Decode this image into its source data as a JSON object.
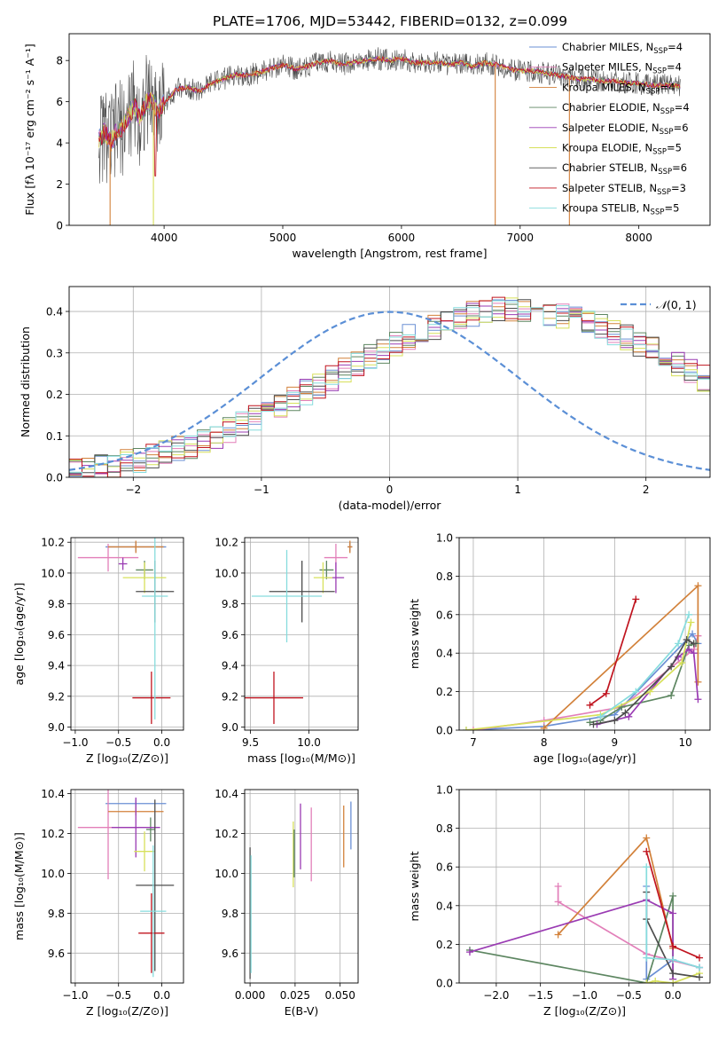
{
  "figure": {
    "title": "PLATE=1706, MJD=53442, FIBERID=0132, z=0.099"
  },
  "colors": {
    "chabrier_miles": "#6a8fd4",
    "salpeter_miles": "#e27fb9",
    "kroupa_miles": "#d2813a",
    "chabrier_elodie": "#5d8661",
    "salpeter_elodie": "#9a3bb3",
    "kroupa_elodie": "#d7e05b",
    "chabrier_stelib": "#4d4d4d",
    "salpeter_stelib": "#c0141f",
    "kroupa_stelib": "#86dcdd",
    "normal_curve": "#5b8fd6",
    "grid": "#b0b0b0"
  },
  "chart_data": [
    {
      "id": "spectrum",
      "type": "line",
      "xlabel": "wavelength [Angstrom, rest frame]",
      "ylabel": "Flux [fλ 10⁻¹⁷ erg cm⁻² s⁻¹ A⁻¹]",
      "xlim": [
        3200,
        8600
      ],
      "ylim": [
        0,
        9.3
      ],
      "xticks": [
        "4000",
        "5000",
        "6000",
        "7000",
        "8000"
      ],
      "yticks": [
        "0",
        "2",
        "4",
        "6",
        "8"
      ],
      "legend_position": "right",
      "data_wavelength": [
        3450,
        3500,
        3550,
        3600,
        3650,
        3700,
        3750,
        3800,
        3850,
        3900,
        3950,
        4000,
        4100,
        4200,
        4300,
        4400,
        4500,
        4600,
        4700,
        4800,
        4900,
        5000,
        5100,
        5200,
        5300,
        5400,
        5500,
        5600,
        5700,
        5800,
        5900,
        6000,
        6100,
        6200,
        6300,
        6400,
        6500,
        6600,
        6700,
        6800,
        6900,
        7000,
        7100,
        7200,
        7300,
        7400,
        7500,
        7600,
        7700,
        7800,
        7900,
        8000,
        8100,
        8200,
        8300,
        8350
      ],
      "data_flux": [
        4.2,
        4.5,
        4.0,
        4.6,
        4.8,
        5.3,
        5.8,
        5.2,
        6.0,
        6.0,
        5.6,
        5.9,
        6.6,
        6.7,
        6.5,
        6.9,
        7.1,
        7.3,
        7.3,
        7.4,
        7.6,
        7.8,
        7.6,
        7.7,
        7.9,
        8.0,
        7.8,
        7.9,
        8.0,
        8.1,
        8.0,
        8.1,
        7.9,
        7.9,
        7.9,
        7.8,
        7.9,
        7.7,
        7.9,
        7.8,
        7.6,
        7.5,
        7.5,
        7.4,
        7.3,
        7.2,
        7.1,
        7.1,
        7.0,
        7.0,
        6.9,
        6.9,
        6.8,
        6.8,
        6.8,
        6.7
      ],
      "series": [
        {
          "name": "Chabrier MILES, N$_{SSP}$=4",
          "label": "Chabrier MILES, N",
          "sub": "SSP",
          "suffix": "=4",
          "color": "#6a8fd4"
        },
        {
          "name": "Salpeter MILES, N$_{SSP}$=4",
          "label": "Salpeter MILES, N",
          "sub": "SSP",
          "suffix": "=4",
          "color": "#e27fb9"
        },
        {
          "name": "Kroupa MILES, N$_{SSP}$=4",
          "label": "Kroupa MILES, N",
          "sub": "SSP",
          "suffix": "=4",
          "color": "#d2813a"
        },
        {
          "name": "Chabrier ELODIE, N$_{SSP}$=4",
          "label": "Chabrier ELODIE, N",
          "sub": "SSP",
          "suffix": "=4",
          "color": "#5d8661"
        },
        {
          "name": "Salpeter ELODIE, N$_{SSP}$=6",
          "label": "Salpeter ELODIE, N",
          "sub": "SSP",
          "suffix": "=6",
          "color": "#9a3bb3"
        },
        {
          "name": "Kroupa ELODIE, N$_{SSP}$=5",
          "label": "Kroupa ELODIE, N",
          "sub": "SSP",
          "suffix": "=5",
          "color": "#d7e05b"
        },
        {
          "name": "Chabrier STELIB, N$_{SSP}$=6",
          "label": "Chabrier STELIB, N",
          "sub": "SSP",
          "suffix": "=6",
          "color": "#4d4d4d"
        },
        {
          "name": "Salpeter STELIB, N$_{SSP}$=3",
          "label": "Salpeter STELIB, N",
          "sub": "SSP",
          "suffix": "=3",
          "color": "#c0141f"
        },
        {
          "name": "Kroupa STELIB, N$_{SSP}$=5",
          "label": "Kroupa STELIB, N",
          "sub": "SSP",
          "suffix": "=5",
          "color": "#86dcdd"
        }
      ]
    },
    {
      "id": "residuals",
      "type": "line",
      "xlabel": "(data-model)/error",
      "ylabel": "Normed distribution",
      "xlim": [
        -2.5,
        2.5
      ],
      "ylim": [
        0,
        0.46
      ],
      "xticks": [
        "−2",
        "−1",
        "0",
        "1",
        "2"
      ],
      "xtick_values": [
        -2,
        -1,
        0,
        1,
        2
      ],
      "yticks": [
        "0.0",
        "0.1",
        "0.2",
        "0.3",
        "0.4"
      ],
      "ytick_values": [
        0,
        0.1,
        0.2,
        0.3,
        0.4
      ],
      "bin_width": 0.1,
      "bin_start": -2.5,
      "envelope": [
        0.02,
        0.022,
        0.025,
        0.03,
        0.035,
        0.042,
        0.05,
        0.058,
        0.067,
        0.077,
        0.088,
        0.1,
        0.113,
        0.127,
        0.142,
        0.157,
        0.172,
        0.189,
        0.205,
        0.222,
        0.239,
        0.257,
        0.274,
        0.29,
        0.307,
        0.323,
        0.338,
        0.352,
        0.365,
        0.376,
        0.385,
        0.392,
        0.398,
        0.402,
        0.405,
        0.405,
        0.402,
        0.398,
        0.392,
        0.385,
        0.376,
        0.365,
        0.352,
        0.338,
        0.323,
        0.307,
        0.29,
        0.274,
        0.257,
        0.239,
        0.222
      ],
      "normal_label_script": "𝒩",
      "normal_label": "(0, 1)"
    },
    {
      "id": "age_vs_Z",
      "type": "scatter",
      "xlabel": "Z [log₁₀(Z/Z⊙)]",
      "ylabel": "age  [log₁₀(age/yr)]",
      "xlim": [
        -1.05,
        0.25
      ],
      "ylim": [
        8.98,
        10.23
      ],
      "xticks": [
        "−1.0",
        "−0.5",
        "0.0"
      ],
      "xtick_values": [
        -1.0,
        -0.5,
        0.0
      ],
      "yticks": [
        "9.0",
        "9.2",
        "9.4",
        "9.6",
        "9.8",
        "10.0",
        "10.2"
      ],
      "ytick_values": [
        9.0,
        9.2,
        9.4,
        9.6,
        9.8,
        10.0,
        10.2
      ],
      "points": [
        {
          "x": -0.3,
          "y": 10.17,
          "xerr": 0.35,
          "yerr": 0.03,
          "color": "#6a8fd4"
        },
        {
          "x": -0.62,
          "y": 10.1,
          "xerr": 0.35,
          "yerr": 0.09,
          "color": "#e27fb9"
        },
        {
          "x": -0.3,
          "y": 10.17,
          "xerr": 0.32,
          "yerr": 0.04,
          "color": "#d2813a"
        },
        {
          "x": -0.2,
          "y": 10.02,
          "xerr": 0.1,
          "yerr": 0.06,
          "color": "#5d8661"
        },
        {
          "x": -0.45,
          "y": 10.06,
          "xerr": 0.05,
          "yerr": 0.04,
          "color": "#9a3bb3"
        },
        {
          "x": -0.2,
          "y": 9.97,
          "xerr": 0.25,
          "yerr": 0.1,
          "color": "#d7e05b"
        },
        {
          "x": -0.08,
          "y": 9.88,
          "xerr": 0.22,
          "yerr": 0.2,
          "color": "#4d4d4d"
        },
        {
          "x": -0.12,
          "y": 9.19,
          "xerr": 0.22,
          "yerr": 0.17,
          "color": "#c0141f"
        },
        {
          "x": -0.08,
          "y": 9.85,
          "xerr": 0.15,
          "yerr": 0.8,
          "color": "#86dcdd"
        }
      ]
    },
    {
      "id": "age_vs_mass",
      "type": "scatter",
      "xlabel": "mass [log₁₀(M/M⊙)]",
      "ylabel": "",
      "xlim": [
        9.45,
        10.42
      ],
      "ylim": [
        8.98,
        10.23
      ],
      "xticks": [
        "9.5",
        "10.0"
      ],
      "xtick_values": [
        9.5,
        10.0
      ],
      "yticks": [
        "9.0",
        "9.2",
        "9.4",
        "9.6",
        "9.8",
        "10.0",
        "10.2"
      ],
      "ytick_values": [
        9.0,
        9.2,
        9.4,
        9.6,
        9.8,
        10.0,
        10.2
      ],
      "points": [
        {
          "x": 10.35,
          "y": 10.17,
          "xerr": 0.02,
          "yerr": 0.03,
          "color": "#6a8fd4"
        },
        {
          "x": 10.23,
          "y": 10.1,
          "xerr": 0.1,
          "yerr": 0.09,
          "color": "#e27fb9"
        },
        {
          "x": 10.35,
          "y": 10.17,
          "xerr": 0.02,
          "yerr": 0.04,
          "color": "#d2813a"
        },
        {
          "x": 10.15,
          "y": 10.02,
          "xerr": 0.06,
          "yerr": 0.06,
          "color": "#5d8661"
        },
        {
          "x": 10.23,
          "y": 9.97,
          "xerr": 0.07,
          "yerr": 0.1,
          "color": "#9a3bb3"
        },
        {
          "x": 10.12,
          "y": 9.97,
          "xerr": 0.08,
          "yerr": 0.1,
          "color": "#d7e05b"
        },
        {
          "x": 9.94,
          "y": 9.88,
          "xerr": 0.28,
          "yerr": 0.2,
          "color": "#4d4d4d"
        },
        {
          "x": 9.7,
          "y": 9.19,
          "xerr": 0.25,
          "yerr": 0.17,
          "color": "#c0141f"
        },
        {
          "x": 9.81,
          "y": 9.85,
          "xerr": 0.3,
          "yerr": 0.3,
          "color": "#86dcdd"
        }
      ]
    },
    {
      "id": "mass_weight_vs_age",
      "type": "line",
      "xlabel": "age  [log₁₀(age/yr)]",
      "ylabel": "mass weight",
      "xlim": [
        6.8,
        10.35
      ],
      "ylim": [
        0,
        1.0
      ],
      "xticks": [
        "7",
        "8",
        "9",
        "10"
      ],
      "xtick_values": [
        7,
        8,
        9,
        10
      ],
      "yticks": [
        "0.0",
        "0.2",
        "0.4",
        "0.6",
        "0.8",
        "1.0"
      ],
      "ytick_values": [
        0,
        0.2,
        0.4,
        0.6,
        0.8,
        1.0
      ],
      "series": [
        {
          "color": "#6a8fd4",
          "x": [
            6.9,
            8.0,
            9.0,
            10.1,
            10.18
          ],
          "y": [
            0.0,
            0.02,
            0.08,
            0.5,
            0.45
          ]
        },
        {
          "color": "#e27fb9",
          "x": [
            7.0,
            8.0,
            9.1,
            10.12,
            10.18
          ],
          "y": [
            0.0,
            0.05,
            0.12,
            0.42,
            0.49
          ]
        },
        {
          "color": "#d2813a",
          "x": [
            8.0,
            10.18,
            10.18
          ],
          "y": [
            0.01,
            0.75,
            0.25
          ]
        },
        {
          "color": "#5d8661",
          "x": [
            8.65,
            8.8,
            9.1,
            9.8,
            10.05,
            10.15
          ],
          "y": [
            0.04,
            0.05,
            0.12,
            0.18,
            0.44,
            0.45
          ]
        },
        {
          "color": "#9a3bb3",
          "x": [
            8.75,
            9.2,
            9.9,
            10.05,
            10.12,
            10.18
          ],
          "y": [
            0.03,
            0.07,
            0.38,
            0.42,
            0.4,
            0.16
          ]
        },
        {
          "color": "#d7e05b",
          "x": [
            6.9,
            8.8,
            9.5,
            9.95,
            10.08
          ],
          "y": [
            0.0,
            0.08,
            0.2,
            0.35,
            0.56
          ]
        },
        {
          "color": "#4d4d4d",
          "x": [
            8.7,
            9.0,
            9.15,
            9.8,
            10.02,
            10.12
          ],
          "y": [
            0.03,
            0.05,
            0.09,
            0.33,
            0.47,
            0.45
          ]
        },
        {
          "color": "#c0141f",
          "x": [
            8.65,
            8.88,
            9.3
          ],
          "y": [
            0.13,
            0.19,
            0.68
          ]
        },
        {
          "color": "#86dcdd",
          "x": [
            8.8,
            9.3,
            9.9,
            10.05
          ],
          "y": [
            0.07,
            0.2,
            0.45,
            0.6
          ]
        }
      ]
    },
    {
      "id": "mass_vs_Z",
      "type": "scatter",
      "xlabel": "Z [log₁₀(Z/Z⊙)]",
      "ylabel": "mass [log₁₀(M/M⊙)]",
      "xlim": [
        -1.05,
        0.25
      ],
      "ylim": [
        9.45,
        10.42
      ],
      "xticks": [
        "−1.0",
        "−0.5",
        "0.0"
      ],
      "xtick_values": [
        -1.0,
        -0.5,
        0.0
      ],
      "yticks": [
        "9.6",
        "9.8",
        "10.0",
        "10.2",
        "10.4"
      ],
      "ytick_values": [
        9.6,
        9.8,
        10.0,
        10.2,
        10.4
      ],
      "points": [
        {
          "x": -0.3,
          "y": 10.35,
          "xerr": 0.35,
          "yerr": 0.02,
          "color": "#6a8fd4"
        },
        {
          "x": -0.62,
          "y": 10.23,
          "xerr": 0.35,
          "yerr": 0.26,
          "color": "#e27fb9"
        },
        {
          "x": -0.3,
          "y": 10.31,
          "xerr": 0.32,
          "yerr": 0.02,
          "color": "#d2813a"
        },
        {
          "x": -0.13,
          "y": 10.22,
          "xerr": 0.05,
          "yerr": 0.06,
          "color": "#5d8661"
        },
        {
          "x": -0.3,
          "y": 10.23,
          "xerr": 0.28,
          "yerr": 0.15,
          "color": "#9a3bb3"
        },
        {
          "x": -0.2,
          "y": 10.11,
          "xerr": 0.12,
          "yerr": 0.1,
          "color": "#d7e05b"
        },
        {
          "x": -0.08,
          "y": 9.94,
          "xerr": 0.22,
          "yerr": 0.43,
          "color": "#4d4d4d"
        },
        {
          "x": -0.12,
          "y": 9.7,
          "xerr": 0.15,
          "yerr": 0.2,
          "color": "#c0141f"
        },
        {
          "x": -0.1,
          "y": 9.81,
          "xerr": 0.15,
          "yerr": 0.33,
          "color": "#86dcdd"
        }
      ]
    },
    {
      "id": "mass_vs_ebv",
      "type": "scatter",
      "xlabel": "E(B-V)",
      "ylabel": "",
      "xlim": [
        -0.003,
        0.06
      ],
      "ylim": [
        9.45,
        10.42
      ],
      "xticks": [
        "0.000",
        "0.025",
        "0.050"
      ],
      "xtick_values": [
        0.0,
        0.025,
        0.05
      ],
      "yticks": [
        "9.6",
        "9.8",
        "10.0",
        "10.2",
        "10.4"
      ],
      "ytick_values": [
        9.6,
        9.8,
        10.0,
        10.2,
        10.4
      ],
      "bars": [
        {
          "x": 0.0,
          "y0": 9.47,
          "y1": 10.13,
          "color": "#4d4d4d"
        },
        {
          "x": 0.0005,
          "y0": 9.5,
          "y1": 10.09,
          "color": "#86dcdd"
        },
        {
          "x": 0.024,
          "y0": 9.93,
          "y1": 10.26,
          "color": "#d7e05b"
        },
        {
          "x": 0.0245,
          "y0": 9.98,
          "y1": 10.22,
          "color": "#5d8661"
        },
        {
          "x": 0.028,
          "y0": 10.02,
          "y1": 10.35,
          "color": "#9a3bb3"
        },
        {
          "x": 0.034,
          "y0": 9.96,
          "y1": 10.33,
          "color": "#e27fb9"
        },
        {
          "x": 0.052,
          "y0": 10.03,
          "y1": 10.34,
          "color": "#d2813a"
        },
        {
          "x": 0.056,
          "y0": 10.12,
          "y1": 10.36,
          "color": "#6a8fd4"
        }
      ]
    },
    {
      "id": "mass_weight_vs_Z",
      "type": "line",
      "xlabel": "Z [log₁₀(Z/Z⊙)]",
      "ylabel": "mass weight",
      "xlim": [
        -2.42,
        0.42
      ],
      "ylim": [
        0,
        1.0
      ],
      "xticks": [
        "−2.0",
        "−1.5",
        "−1.0",
        "−0.5",
        "0.0"
      ],
      "xtick_values": [
        -2.0,
        -1.5,
        -1.0,
        -0.5,
        0.0
      ],
      "yticks": [
        "0.0",
        "0.2",
        "0.4",
        "0.6",
        "0.8",
        "1.0"
      ],
      "ytick_values": [
        0,
        0.2,
        0.4,
        0.6,
        0.8,
        1.0
      ],
      "series": [
        {
          "color": "#6a8fd4",
          "x": [
            -0.3,
            -0.3,
            0.0,
            0.3
          ],
          "y": [
            0.5,
            0.02,
            0.12,
            0.08
          ]
        },
        {
          "color": "#e27fb9",
          "x": [
            -1.3,
            -1.3,
            -0.3,
            0.3
          ],
          "y": [
            0.5,
            0.42,
            0.15,
            0.08
          ]
        },
        {
          "color": "#d2813a",
          "x": [
            -1.3,
            -0.3,
            0.0
          ],
          "y": [
            0.25,
            0.75,
            0.18
          ]
        },
        {
          "color": "#5d8661",
          "x": [
            -2.3,
            -0.3,
            0.0,
            0.0
          ],
          "y": [
            0.17,
            0.0,
            0.45,
            0.02
          ]
        },
        {
          "color": "#9a3bb3",
          "x": [
            -2.3,
            -0.3,
            0.0,
            0.0
          ],
          "y": [
            0.16,
            0.43,
            0.36,
            0.02
          ]
        },
        {
          "color": "#d7e05b",
          "x": [
            -0.3,
            -0.2,
            0.0,
            0.3
          ],
          "y": [
            0.0,
            0.01,
            0.0,
            0.05
          ]
        },
        {
          "color": "#4d4d4d",
          "x": [
            -0.3,
            -0.3,
            0.0,
            0.3
          ],
          "y": [
            0.47,
            0.33,
            0.05,
            0.03
          ]
        },
        {
          "color": "#c0141f",
          "x": [
            -0.3,
            0.0,
            0.3
          ],
          "y": [
            0.68,
            0.19,
            0.13
          ]
        },
        {
          "color": "#86dcdd",
          "x": [
            -0.3,
            -0.3,
            0.0,
            0.3
          ],
          "y": [
            0.6,
            0.13,
            0.12,
            0.08
          ]
        }
      ]
    }
  ]
}
